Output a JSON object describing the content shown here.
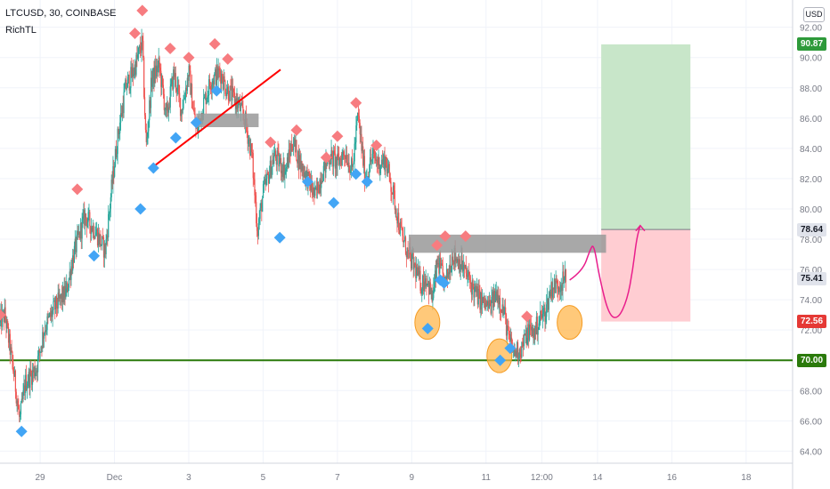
{
  "header": {
    "symbol": "LTCUSD, 30, COINBASE",
    "indicator": "RichTL"
  },
  "currency_button": "USD",
  "colors": {
    "bull": "#26a69a",
    "bear": "#ef5350",
    "support": "#2b7a0b",
    "trendline": "#ff0000",
    "projection": "#e91e8c",
    "target_zone": "#c8e6c9",
    "stop_zone": "#ffcdd2",
    "zone_box": "#999999",
    "marker_high": "#f77c80",
    "marker_low": "#42a5f5",
    "circle": "#ffb74d"
  },
  "price_badges": [
    {
      "label": "90.87",
      "price": 90.87,
      "bg": "#2e9a3a",
      "fg": "#ffffff"
    },
    {
      "label": "78.64",
      "price": 78.64,
      "bg": "#e0e3eb",
      "fg": "#131722"
    },
    {
      "label": "75.41",
      "price": 75.41,
      "bg": "#e0e3eb",
      "fg": "#131722"
    },
    {
      "label": "72.56",
      "price": 72.56,
      "bg": "#e53935",
      "fg": "#ffffff"
    },
    {
      "label": "70.00",
      "price": 70.0,
      "bg": "#2b7a0b",
      "fg": "#ffffff"
    }
  ],
  "chart_data": {
    "type": "candlestick",
    "symbol": "LTCUSD",
    "timeframe": "30",
    "exchange": "COINBASE",
    "y_ticks": [
      64,
      66,
      68,
      70,
      72,
      74,
      76,
      78,
      80,
      82,
      84,
      86,
      88,
      90,
      92
    ],
    "y_range": [
      63.2,
      93.8
    ],
    "x_range": [
      27.92,
      49.25
    ],
    "x_ticks": [
      {
        "label": "29",
        "day": 29
      },
      {
        "label": "Dec",
        "day": 31
      },
      {
        "label": "3",
        "day": 33
      },
      {
        "label": "5",
        "day": 35
      },
      {
        "label": "7",
        "day": 37
      },
      {
        "label": "9",
        "day": 39
      },
      {
        "label": "11",
        "day": 41
      },
      {
        "label": "12:00",
        "day": 42.5
      },
      {
        "label": "14",
        "day": 44
      },
      {
        "label": "16",
        "day": 46
      },
      {
        "label": "18",
        "day": 48
      }
    ],
    "price_path": [
      [
        27.92,
        72.5
      ],
      [
        28.05,
        73.0
      ],
      [
        28.3,
        69.0
      ],
      [
        28.45,
        66.0
      ],
      [
        28.6,
        68.5
      ],
      [
        28.9,
        69.5
      ],
      [
        29.1,
        72.0
      ],
      [
        29.4,
        73.5
      ],
      [
        29.7,
        74.5
      ],
      [
        29.9,
        77.0
      ],
      [
        30.2,
        79.5
      ],
      [
        30.5,
        78.5
      ],
      [
        30.75,
        77.2
      ],
      [
        30.95,
        82.0
      ],
      [
        31.1,
        85.0
      ],
      [
        31.3,
        88.0
      ],
      [
        31.5,
        89.0
      ],
      [
        31.75,
        91.0
      ],
      [
        31.85,
        84.0
      ],
      [
        32.0,
        88.5
      ],
      [
        32.2,
        89.5
      ],
      [
        32.4,
        86.0
      ],
      [
        32.6,
        89.0
      ],
      [
        32.8,
        86.5
      ],
      [
        33.0,
        89.0
      ],
      [
        33.2,
        85.0
      ],
      [
        33.4,
        87.0
      ],
      [
        33.6,
        88.5
      ],
      [
        33.85,
        89.0
      ],
      [
        34.0,
        88.0
      ],
      [
        34.3,
        87.0
      ],
      [
        34.5,
        86.0
      ],
      [
        34.7,
        83.5
      ],
      [
        34.85,
        78.5
      ],
      [
        35.0,
        81.0
      ],
      [
        35.3,
        83.5
      ],
      [
        35.6,
        82.5
      ],
      [
        35.8,
        84.5
      ],
      [
        36.0,
        83.0
      ],
      [
        36.2,
        82.0
      ],
      [
        36.4,
        80.8
      ],
      [
        36.6,
        82.5
      ],
      [
        36.8,
        83.5
      ],
      [
        37.0,
        83.0
      ],
      [
        37.2,
        83.8
      ],
      [
        37.4,
        82.5
      ],
      [
        37.55,
        86.2
      ],
      [
        37.75,
        82.0
      ],
      [
        37.95,
        83.5
      ],
      [
        38.1,
        83.0
      ],
      [
        38.3,
        83.2
      ],
      [
        38.5,
        81.0
      ],
      [
        38.7,
        78.5
      ],
      [
        38.9,
        77.0
      ],
      [
        39.1,
        76.0
      ],
      [
        39.25,
        75.0
      ],
      [
        39.4,
        75.5
      ],
      [
        39.55,
        74.0
      ],
      [
        39.7,
        76.5
      ],
      [
        39.9,
        75.0
      ],
      [
        40.1,
        77.0
      ],
      [
        40.3,
        76.5
      ],
      [
        40.5,
        75.5
      ],
      [
        40.7,
        74.5
      ],
      [
        40.9,
        73.8
      ],
      [
        41.1,
        73.5
      ],
      [
        41.3,
        74.5
      ],
      [
        41.5,
        73.0
      ],
      [
        41.6,
        71.5
      ],
      [
        41.75,
        70.5
      ],
      [
        41.95,
        70.8
      ],
      [
        42.15,
        72.0
      ],
      [
        42.3,
        71.8
      ],
      [
        42.45,
        72.8
      ],
      [
        42.6,
        73.2
      ],
      [
        42.75,
        74.8
      ],
      [
        42.95,
        75.0
      ],
      [
        43.15,
        75.4
      ]
    ],
    "support_price": 70.0,
    "position": {
      "entry": 78.64,
      "target": 90.87,
      "stop": 72.56,
      "x_start": 44.1,
      "x_end": 46.5
    },
    "zones": [
      {
        "x1": 33.2,
        "x2": 34.88,
        "y_low": 85.4,
        "y_high": 86.3
      },
      {
        "x1": 38.92,
        "x2": 44.23,
        "y_low": 77.1,
        "y_high": 78.3
      }
    ],
    "trendline": {
      "x1": 32.05,
      "y1": 82.8,
      "x2": 35.47,
      "y2": 89.2
    },
    "high_markers": [
      [
        27.92,
        73.0
      ],
      [
        30.0,
        81.3
      ],
      [
        31.55,
        91.6
      ],
      [
        31.75,
        93.1
      ],
      [
        32.5,
        90.6
      ],
      [
        33.0,
        90.0
      ],
      [
        33.7,
        90.9
      ],
      [
        34.05,
        89.9
      ],
      [
        35.2,
        84.4
      ],
      [
        35.9,
        85.2
      ],
      [
        36.7,
        83.4
      ],
      [
        37.0,
        84.8
      ],
      [
        37.5,
        87.0
      ],
      [
        38.05,
        84.2
      ],
      [
        39.68,
        77.6
      ],
      [
        39.9,
        78.2
      ],
      [
        40.45,
        78.2
      ],
      [
        42.1,
        72.9
      ]
    ],
    "low_markers": [
      [
        28.5,
        65.3
      ],
      [
        30.45,
        76.9
      ],
      [
        31.7,
        80.0
      ],
      [
        32.05,
        82.7
      ],
      [
        32.65,
        84.7
      ],
      [
        33.2,
        85.7
      ],
      [
        33.75,
        87.8
      ],
      [
        35.45,
        78.1
      ],
      [
        36.2,
        81.8
      ],
      [
        36.9,
        80.4
      ],
      [
        37.5,
        82.3
      ],
      [
        37.8,
        81.8
      ],
      [
        39.43,
        72.1
      ],
      [
        39.77,
        75.3
      ],
      [
        39.87,
        75.1
      ],
      [
        41.38,
        70.0
      ],
      [
        41.65,
        70.8
      ]
    ],
    "circles": [
      [
        39.42,
        72.5
      ],
      [
        41.36,
        70.3
      ],
      [
        43.25,
        72.5
      ]
    ],
    "projection": [
      [
        43.25,
        75.3
      ],
      [
        43.6,
        75.9
      ],
      [
        43.8,
        77.3
      ],
      [
        43.9,
        77.7
      ],
      [
        44.05,
        75.5
      ],
      [
        44.3,
        73.0
      ],
      [
        44.55,
        72.7
      ],
      [
        44.8,
        74.0
      ],
      [
        44.95,
        76.0
      ],
      [
        45.05,
        78.0
      ],
      [
        45.15,
        78.9
      ]
    ]
  }
}
